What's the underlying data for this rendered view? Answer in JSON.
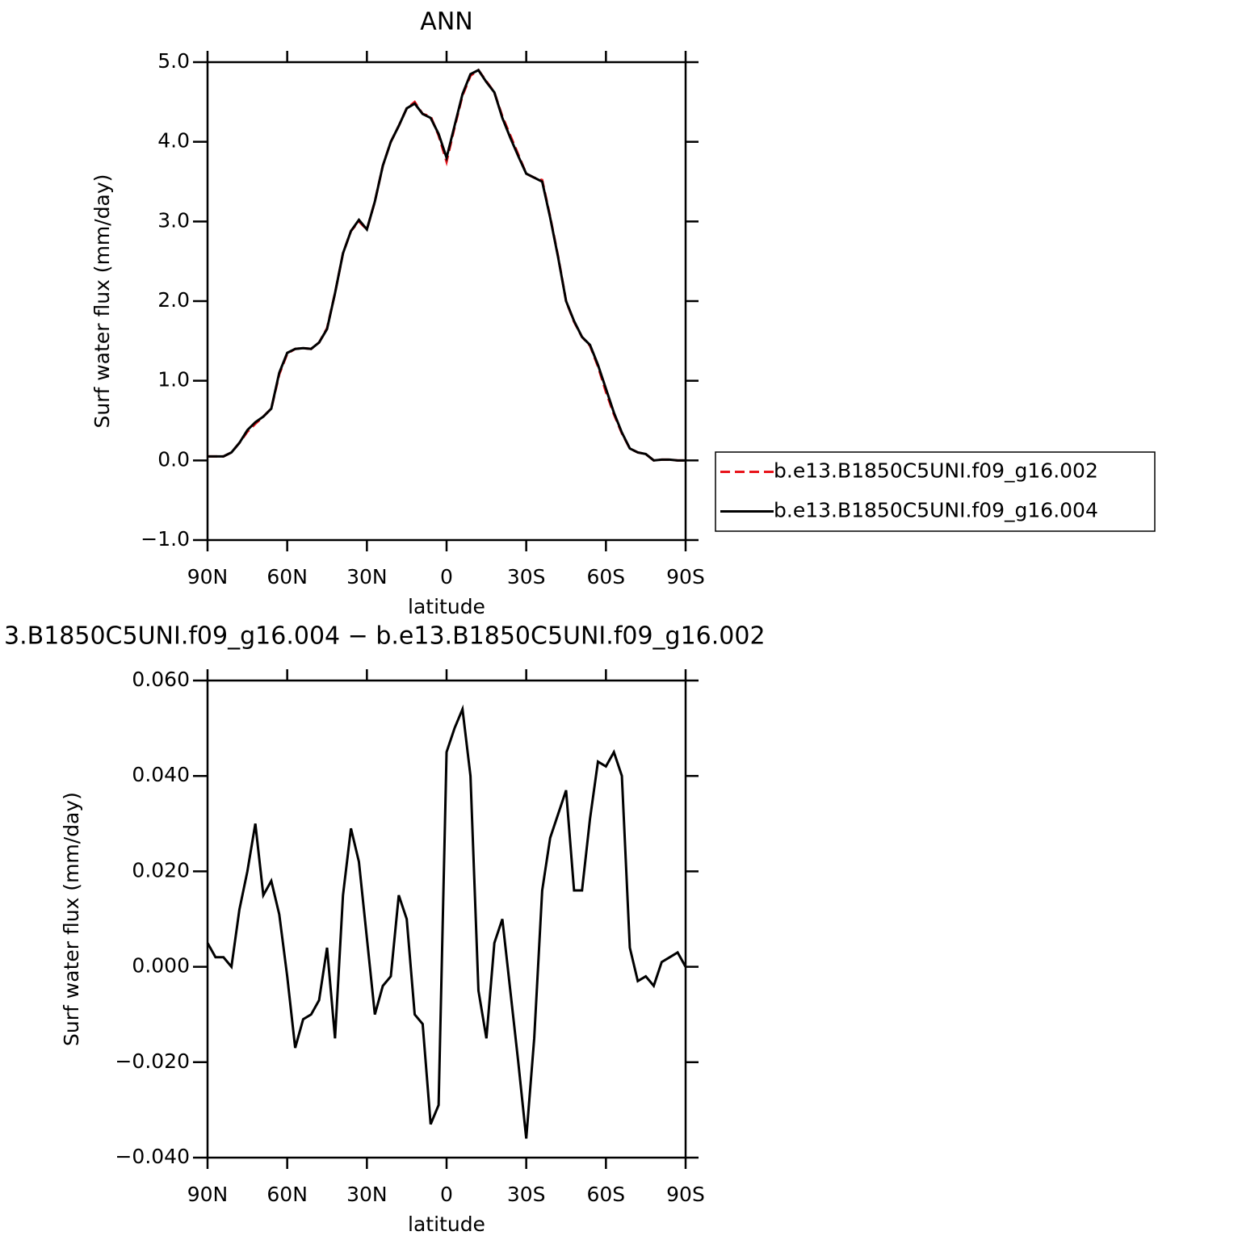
{
  "chart_data": [
    {
      "type": "line",
      "title": "ANN",
      "xlabel": "latitude",
      "ylabel": "Surf water flux (mm/day)",
      "x": [
        90,
        87,
        84,
        81,
        78,
        75,
        72,
        69,
        66,
        63,
        60,
        57,
        54,
        51,
        48,
        45,
        42,
        39,
        36,
        33,
        30,
        27,
        24,
        21,
        18,
        15,
        12,
        9,
        6,
        3,
        0,
        -3,
        -6,
        -9,
        -12,
        -15,
        -18,
        -21,
        -24,
        -27,
        -30,
        -33,
        -36,
        -39,
        -42,
        -45,
        -48,
        -51,
        -54,
        -57,
        -60,
        -63,
        -66,
        -69,
        -72,
        -75,
        -78,
        -81,
        -84,
        -87,
        -90
      ],
      "series": [
        {
          "name": "b.e13.B1850C5UNI.f09_g16.002",
          "color": "#e8141b",
          "line_style": "dashed",
          "values": [
            0.05,
            0.05,
            0.05,
            0.1,
            0.22,
            0.36,
            0.46,
            0.55,
            0.65,
            1.08,
            1.34,
            1.4,
            1.41,
            1.4,
            1.48,
            1.66,
            2.1,
            2.6,
            2.88,
            3.0,
            2.9,
            3.25,
            3.7,
            4.0,
            4.2,
            4.42,
            4.5,
            4.35,
            4.32,
            4.08,
            3.75,
            4.18,
            4.58,
            4.83,
            4.9,
            4.76,
            4.62,
            4.32,
            4.08,
            3.84,
            3.6,
            3.55,
            3.52,
            3.06,
            2.56,
            2.0,
            1.74,
            1.55,
            1.44,
            1.18,
            0.86,
            0.58,
            0.34,
            0.15,
            0.1,
            0.08,
            0.0,
            0.01,
            0.01,
            0.0,
            0.0
          ]
        },
        {
          "name": "b.e13.B1850C5UNI.f09_g16.004",
          "color": "#000000",
          "line_style": "solid",
          "values": [
            0.05,
            0.05,
            0.05,
            0.1,
            0.22,
            0.38,
            0.48,
            0.55,
            0.65,
            1.1,
            1.35,
            1.4,
            1.41,
            1.4,
            1.48,
            1.65,
            2.1,
            2.6,
            2.88,
            3.02,
            2.9,
            3.25,
            3.7,
            4.0,
            4.2,
            4.42,
            4.48,
            4.35,
            4.3,
            4.1,
            3.8,
            4.2,
            4.6,
            4.85,
            4.9,
            4.75,
            4.62,
            4.3,
            4.05,
            3.82,
            3.6,
            3.55,
            3.5,
            3.05,
            2.55,
            2.0,
            1.75,
            1.55,
            1.45,
            1.2,
            0.9,
            0.6,
            0.35,
            0.15,
            0.1,
            0.08,
            0.0,
            0.01,
            0.01,
            0.0,
            0.0
          ]
        }
      ],
      "xlim": [
        90,
        -90
      ],
      "xticks": [
        {
          "value": 90,
          "label": "90N"
        },
        {
          "value": 60,
          "label": "60N"
        },
        {
          "value": 30,
          "label": "30N"
        },
        0,
        {
          "value": -30,
          "label": "30S"
        },
        {
          "value": -60,
          "label": "60S"
        },
        {
          "value": -90,
          "label": "90S"
        }
      ],
      "ylim": [
        -1,
        5
      ],
      "yticks": [
        {
          "value": 5,
          "label": "5.0"
        },
        {
          "value": 4,
          "label": "4.0"
        },
        {
          "value": 3,
          "label": "3.0"
        },
        {
          "value": 2,
          "label": "2.0"
        },
        {
          "value": 1,
          "label": "1.0"
        },
        {
          "value": 0,
          "label": "0.0"
        },
        {
          "value": -1,
          "label": "−1.0"
        }
      ],
      "legend": "outside-right"
    },
    {
      "type": "line",
      "title": "3.B1850C5UNI.f09_g16.004 − b.e13.B1850C5UNI.f09_g16.002",
      "xlabel": "latitude",
      "ylabel": "Surf water flux (mm/day)",
      "x": [
        90,
        87,
        84,
        81,
        78,
        75,
        72,
        69,
        66,
        63,
        60,
        57,
        54,
        51,
        48,
        45,
        42,
        39,
        36,
        33,
        30,
        27,
        24,
        21,
        18,
        15,
        12,
        9,
        6,
        3,
        0,
        -3,
        -6,
        -9,
        -12,
        -15,
        -18,
        -21,
        -24,
        -27,
        -30,
        -33,
        -36,
        -39,
        -42,
        -45,
        -48,
        -51,
        -54,
        -57,
        -60,
        -63,
        -66,
        -69,
        -72,
        -75,
        -78,
        -81,
        -84,
        -87,
        -90
      ],
      "series": [
        {
          "color": "#000000",
          "line_style": "solid",
          "values": [
            0.005,
            0.002,
            0.002,
            0.0,
            0.012,
            0.02,
            0.03,
            0.015,
            0.018,
            0.011,
            -0.002,
            -0.017,
            -0.011,
            -0.01,
            -0.007,
            0.004,
            -0.015,
            0.015,
            0.029,
            0.022,
            0.006,
            -0.01,
            -0.004,
            -0.002,
            0.015,
            0.01,
            -0.01,
            -0.012,
            -0.033,
            -0.029,
            0.045,
            0.05,
            0.054,
            0.04,
            -0.005,
            -0.015,
            0.005,
            0.01,
            -0.005,
            -0.02,
            -0.036,
            -0.015,
            0.016,
            0.027,
            0.032,
            0.037,
            0.016,
            0.016,
            0.031,
            0.043,
            0.042,
            0.045,
            0.04,
            0.004,
            -0.003,
            -0.002,
            -0.004,
            0.001,
            0.002,
            0.003,
            0.0
          ]
        }
      ],
      "xlim": [
        90,
        -90
      ],
      "xticks": [
        {
          "value": 90,
          "label": "90N"
        },
        {
          "value": 60,
          "label": "60N"
        },
        {
          "value": 30,
          "label": "30N"
        },
        0,
        {
          "value": -30,
          "label": "30S"
        },
        {
          "value": -60,
          "label": "60S"
        },
        {
          "value": -90,
          "label": "90S"
        }
      ],
      "ylim": [
        -0.04,
        0.06
      ],
      "yticks": [
        {
          "value": 0.06,
          "label": "0.060"
        },
        {
          "value": 0.04,
          "label": "0.040"
        },
        {
          "value": 0.02,
          "label": "0.020"
        },
        {
          "value": 0,
          "label": "0.000"
        },
        {
          "value": -0.02,
          "label": "−0.020"
        },
        {
          "value": -0.04,
          "label": "−0.040"
        }
      ]
    }
  ]
}
